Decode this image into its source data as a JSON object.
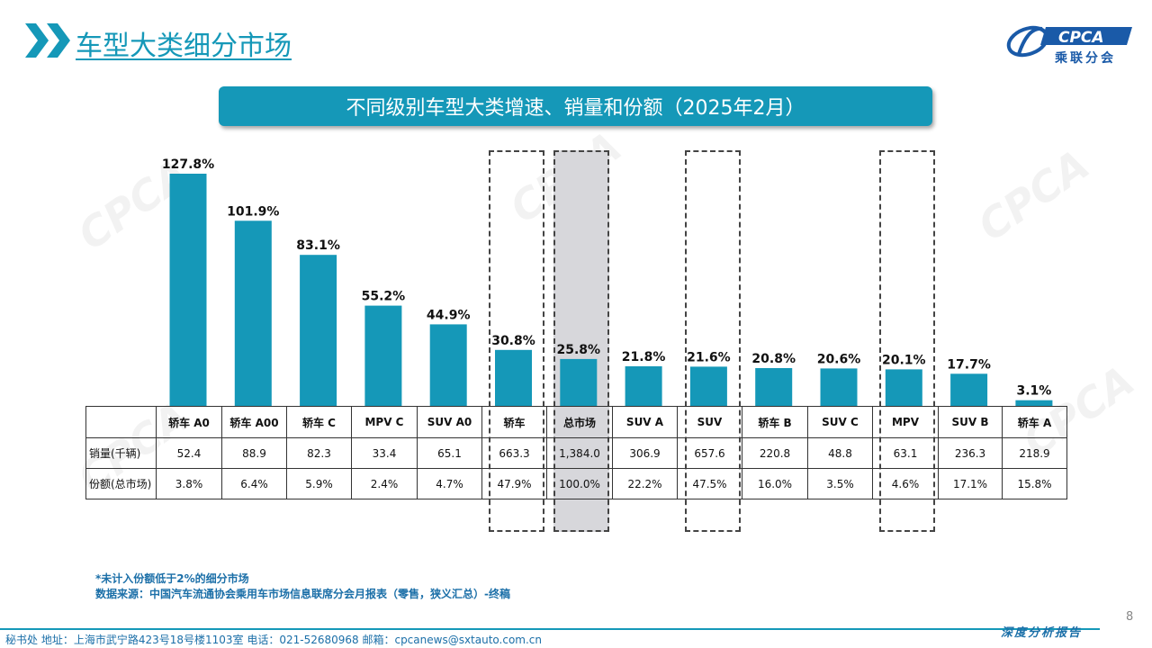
{
  "header": {
    "title": "车型大类细分市场",
    "logo_text": "CPCA",
    "logo_subtext": "乘联分会"
  },
  "banner": {
    "title": "不同级别车型大类增速、销量和份额（2025年2月）"
  },
  "colors": {
    "accent": "#1598b8",
    "bar": "#1598b8",
    "highlight_fill": "#d7d7db"
  },
  "chart_data": {
    "type": "bar",
    "title": "不同级别车型大类增速、销量和份额（2025年2月）",
    "categories": [
      "轿车 A0",
      "轿车 A00",
      "轿车 C",
      "MPV C",
      "SUV A0",
      "轿车",
      "总市场",
      "SUV A",
      "SUV",
      "轿车 B",
      "SUV C",
      "MPV",
      "SUV B",
      "轿车 A"
    ],
    "growth_pct": [
      127.8,
      101.9,
      83.1,
      55.2,
      44.9,
      30.8,
      25.8,
      21.8,
      21.6,
      20.8,
      20.6,
      20.1,
      17.7,
      3.1
    ],
    "growth_labels": [
      "127.8%",
      "101.9%",
      "83.1%",
      "55.2%",
      "44.9%",
      "30.8%",
      "25.8%",
      "21.8%",
      "21.6%",
      "20.8%",
      "20.6%",
      "20.1%",
      "17.7%",
      "3.1%"
    ],
    "highlighted_categories": [
      "轿车",
      "总市场",
      "SUV",
      "MPV"
    ],
    "shaded_category": "总市场",
    "ylim": [
      0,
      130
    ]
  },
  "table": {
    "row_labels": [
      "销量(千辆)",
      "份额(总市场)"
    ],
    "sales": [
      "52.4",
      "88.9",
      "82.3",
      "33.4",
      "65.1",
      "663.3",
      "1,384.0",
      "306.9",
      "657.6",
      "220.8",
      "48.8",
      "63.1",
      "236.3",
      "218.9"
    ],
    "share": [
      "3.8%",
      "6.4%",
      "5.9%",
      "2.4%",
      "4.7%",
      "47.9%",
      "100.0%",
      "22.2%",
      "47.5%",
      "16.0%",
      "3.5%",
      "4.6%",
      "17.1%",
      "15.8%"
    ]
  },
  "notes": {
    "note1": "*未计入份额低于2%的细分市场",
    "note2": "数据来源：中国汽车流通协会乘用车市场信息联席分会月报表（零售，狭义汇总）-终稿"
  },
  "page_number": "8",
  "footer": {
    "left": "秘书处   地址：上海市武宁路423号18号楼1103室  电话：021-52680968   邮箱：cpcanews@sxtauto.com.cn",
    "right": "深度分析报告"
  }
}
